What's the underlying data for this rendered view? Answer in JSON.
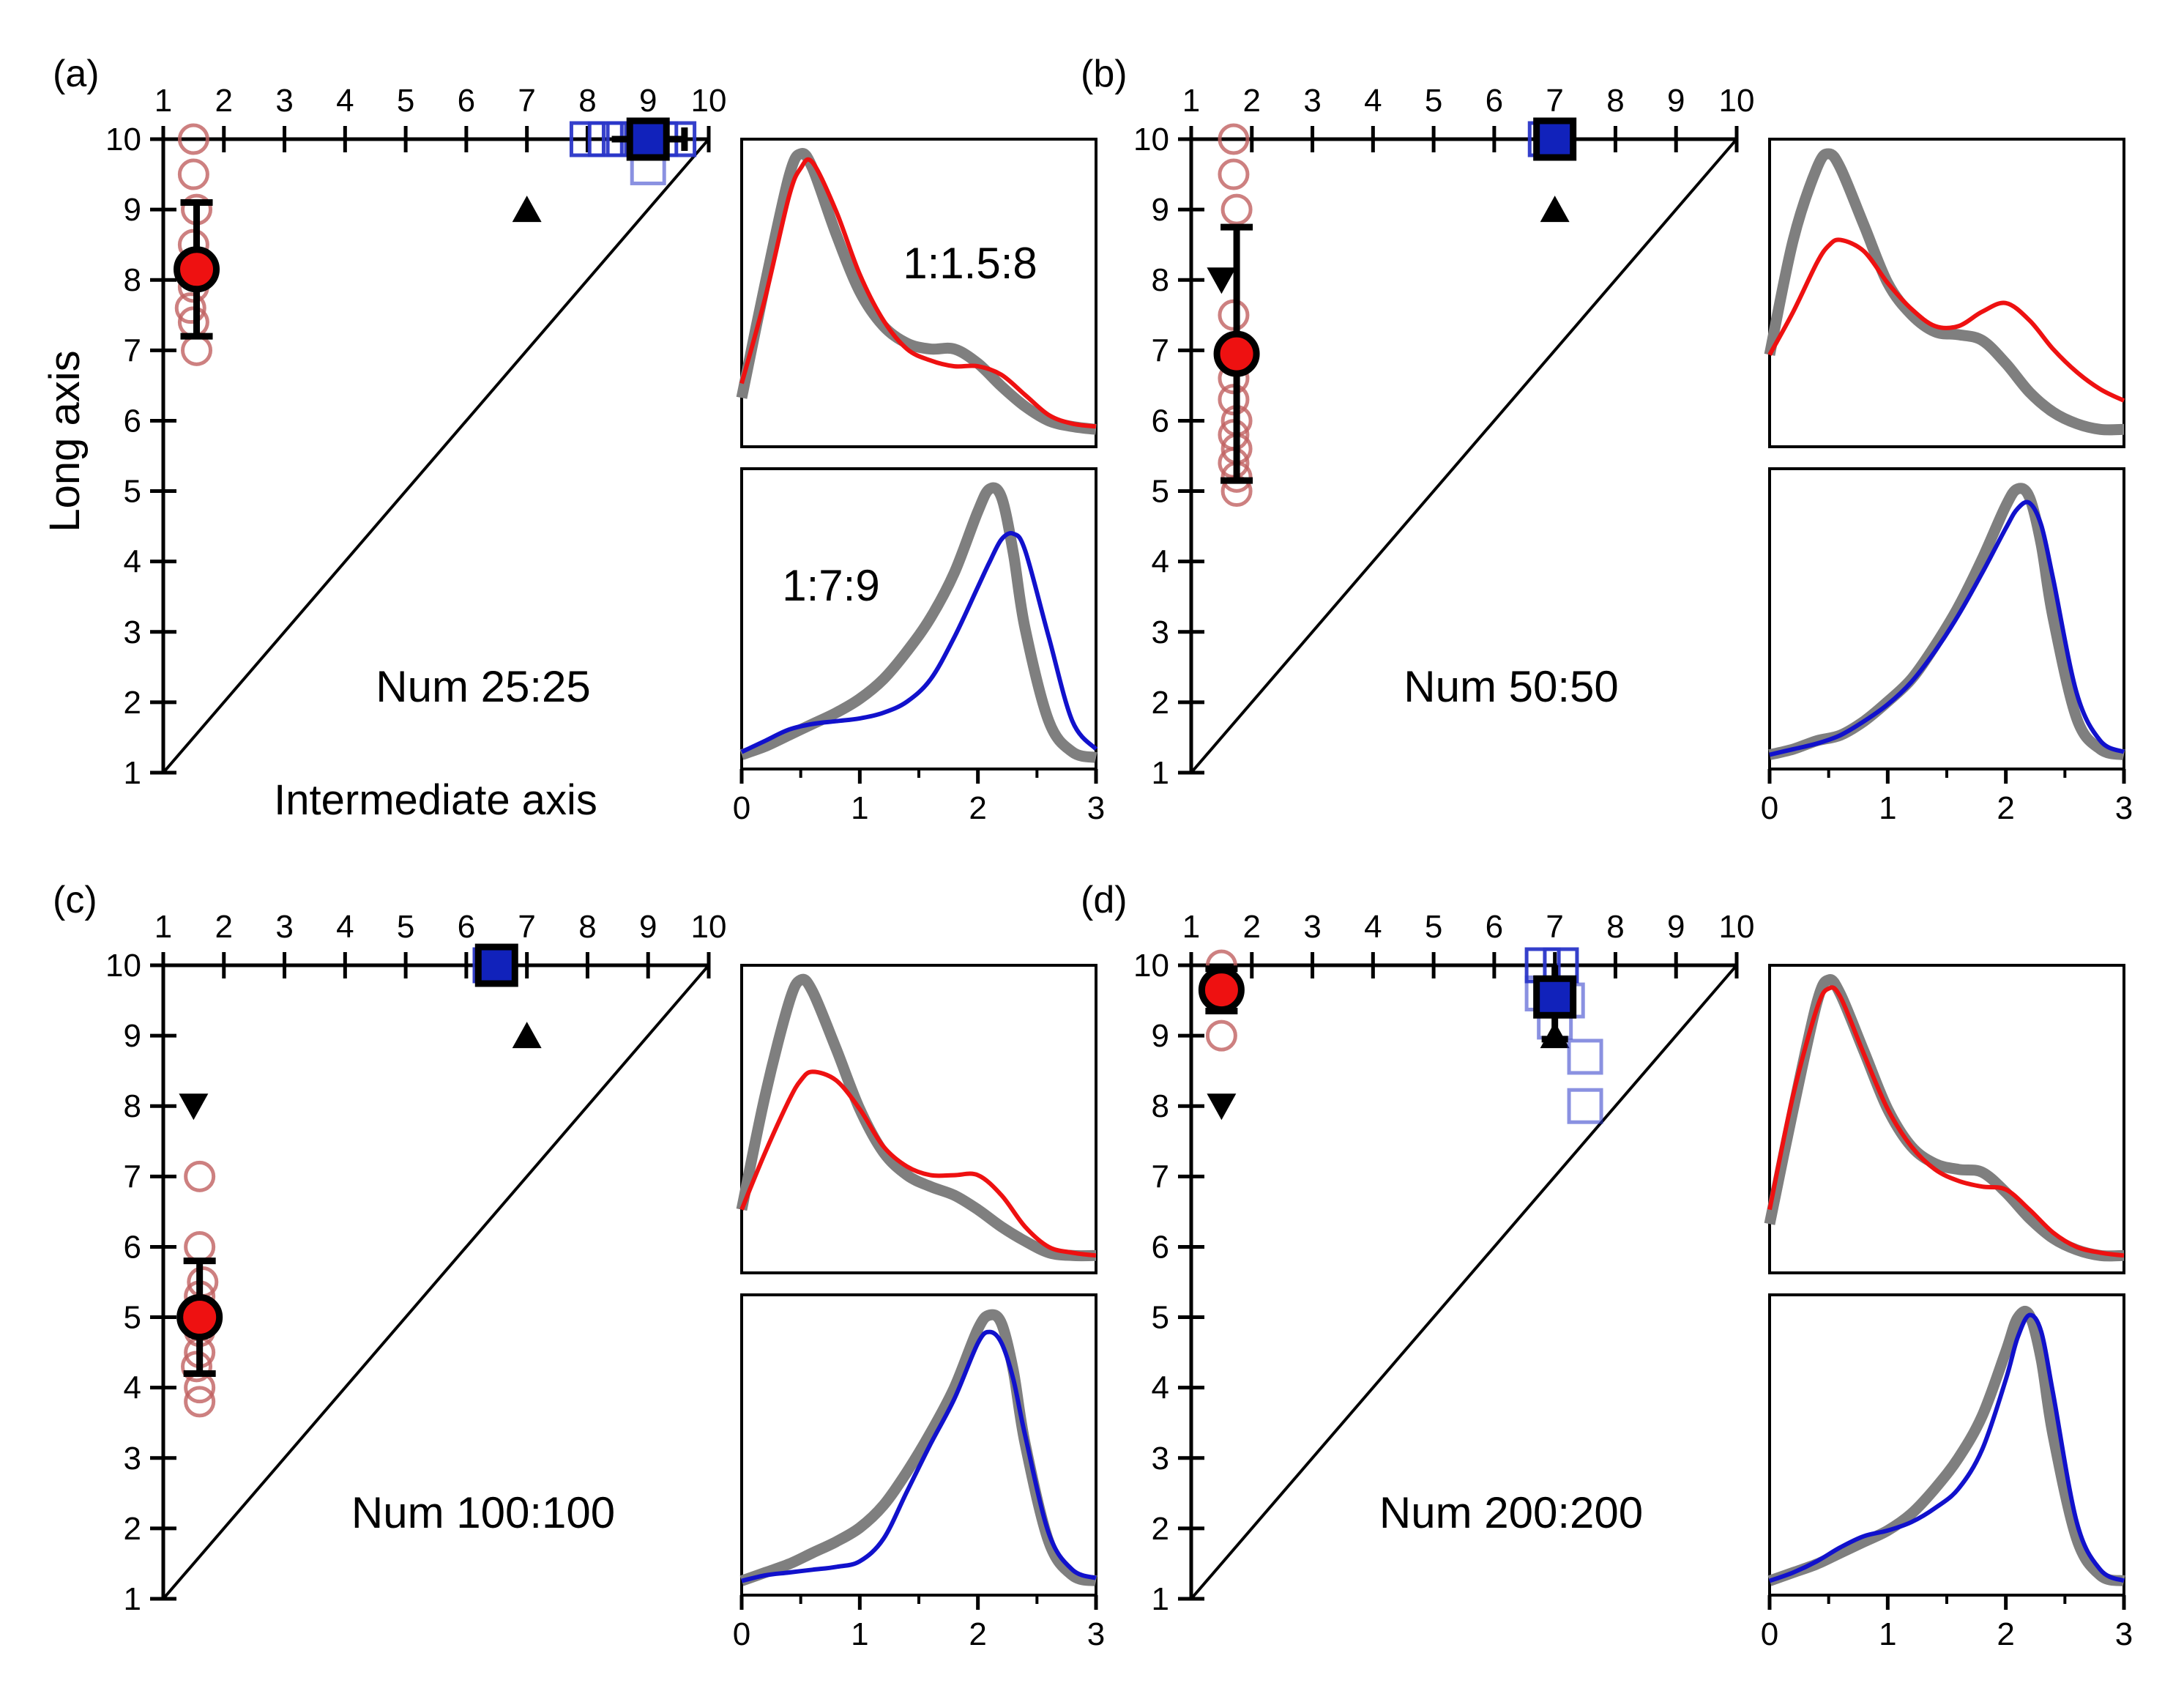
{
  "chart_data": [
    {
      "type": "scatter",
      "panel_label": "(a)",
      "caption": "Num 25:25",
      "ylabel": "Long axis",
      "xlabel": "Intermediate axis",
      "x_ticks": [
        "1",
        "2",
        "3",
        "4",
        "5",
        "6",
        "7",
        "8",
        "9",
        "10"
      ],
      "y_ticks": [
        "1",
        "2",
        "3",
        "4",
        "5",
        "6",
        "7",
        "8",
        "9",
        "10"
      ],
      "xlim": [
        1,
        10
      ],
      "ylim": [
        1,
        10
      ],
      "red_samples": [
        [
          1.5,
          10
        ],
        [
          1.5,
          9.5
        ],
        [
          1.55,
          9
        ],
        [
          1.5,
          8.5
        ],
        [
          1.55,
          8.2
        ],
        [
          1.5,
          7.9
        ],
        [
          1.45,
          7.6
        ],
        [
          1.5,
          7.4
        ],
        [
          1.55,
          7
        ]
      ],
      "red_mean": {
        "x": 1.55,
        "y": 8.15,
        "err": 0.95
      },
      "blue_samples": [
        [
          8.0,
          10
        ],
        [
          8.3,
          10
        ],
        [
          8.6,
          10
        ],
        [
          8.9,
          10
        ],
        [
          9.2,
          10
        ],
        [
          9.5,
          10
        ],
        [
          9.0,
          9.6
        ]
      ],
      "blue_mean": {
        "x": 9.0,
        "y": 10.0,
        "xerr": 0.6
      },
      "up_triangle": [
        7.0,
        9.0
      ],
      "down_triangle": null,
      "inset_top": {
        "label": "1:1.5:8",
        "xlim": [
          0,
          3
        ],
        "color": "#ee1111",
        "x": [
          0,
          0.2,
          0.4,
          0.5,
          0.6,
          0.8,
          1.0,
          1.2,
          1.4,
          1.6,
          1.8,
          2.0,
          2.2,
          2.4,
          2.6,
          2.8,
          3.0
        ],
        "reference": [
          0.15,
          0.55,
          0.92,
          1.0,
          0.95,
          0.72,
          0.52,
          0.4,
          0.34,
          0.32,
          0.32,
          0.27,
          0.19,
          0.12,
          0.07,
          0.05,
          0.04
        ],
        "fit": [
          0.2,
          0.5,
          0.85,
          0.95,
          0.97,
          0.8,
          0.58,
          0.42,
          0.32,
          0.28,
          0.26,
          0.26,
          0.23,
          0.16,
          0.09,
          0.06,
          0.05
        ]
      },
      "inset_bottom": {
        "label": "1:7:9",
        "xlim": [
          0,
          3
        ],
        "color": "#1111cc",
        "x": [
          0,
          0.2,
          0.4,
          0.6,
          0.8,
          1.0,
          1.2,
          1.4,
          1.6,
          1.8,
          2.0,
          2.1,
          2.2,
          2.3,
          2.4,
          2.6,
          2.8,
          3.0
        ],
        "reference": [
          0.03,
          0.06,
          0.1,
          0.14,
          0.18,
          0.23,
          0.3,
          0.4,
          0.52,
          0.68,
          0.9,
          0.98,
          0.95,
          0.75,
          0.48,
          0.15,
          0.04,
          0.02
        ],
        "fit": [
          0.04,
          0.08,
          0.12,
          0.14,
          0.15,
          0.16,
          0.18,
          0.22,
          0.3,
          0.45,
          0.63,
          0.72,
          0.8,
          0.82,
          0.76,
          0.45,
          0.15,
          0.05
        ]
      },
      "inset_xticks": [
        "0",
        "1",
        "2",
        "3"
      ]
    },
    {
      "type": "scatter",
      "panel_label": "(b)",
      "caption": "Num 50:50",
      "x_ticks": [
        "1",
        "2",
        "3",
        "4",
        "5",
        "6",
        "7",
        "8",
        "9",
        "10"
      ],
      "y_ticks": [
        "1",
        "2",
        "3",
        "4",
        "5",
        "6",
        "7",
        "8",
        "9",
        "10"
      ],
      "xlim": [
        1,
        10
      ],
      "ylim": [
        1,
        10
      ],
      "red_samples": [
        [
          1.7,
          10
        ],
        [
          1.7,
          9.5
        ],
        [
          1.75,
          9
        ],
        [
          1.7,
          7.5
        ],
        [
          1.75,
          7.0
        ],
        [
          1.7,
          6.6
        ],
        [
          1.7,
          6.3
        ],
        [
          1.75,
          6.0
        ],
        [
          1.7,
          5.8
        ],
        [
          1.75,
          5.6
        ],
        [
          1.7,
          5.4
        ],
        [
          1.75,
          5.2
        ],
        [
          1.75,
          5.0
        ]
      ],
      "red_mean": {
        "x": 1.75,
        "y": 6.95,
        "err": 1.8
      },
      "blue_samples": [
        [
          6.85,
          10
        ],
        [
          7.0,
          10
        ]
      ],
      "blue_mean": {
        "x": 7.0,
        "y": 10.0
      },
      "up_triangle": [
        7.0,
        9.0
      ],
      "down_triangle": [
        1.5,
        8.0
      ],
      "inset_top": {
        "label": "",
        "xlim": [
          0,
          3
        ],
        "color": "#ee1111",
        "x": [
          0,
          0.2,
          0.4,
          0.5,
          0.6,
          0.8,
          1.0,
          1.2,
          1.4,
          1.6,
          1.8,
          2.0,
          2.2,
          2.4,
          2.6,
          2.8,
          3.0
        ],
        "reference": [
          0.3,
          0.7,
          0.95,
          1.0,
          0.95,
          0.75,
          0.55,
          0.44,
          0.38,
          0.37,
          0.35,
          0.27,
          0.17,
          0.1,
          0.06,
          0.04,
          0.04
        ],
        "fit": [
          0.3,
          0.45,
          0.62,
          0.68,
          0.7,
          0.66,
          0.55,
          0.46,
          0.4,
          0.4,
          0.45,
          0.48,
          0.42,
          0.32,
          0.24,
          0.18,
          0.14
        ]
      },
      "inset_bottom": {
        "label": "",
        "xlim": [
          0,
          3
        ],
        "color": "#1111cc",
        "x": [
          0,
          0.2,
          0.4,
          0.6,
          0.8,
          1.0,
          1.2,
          1.4,
          1.6,
          1.8,
          2.0,
          2.1,
          2.2,
          2.3,
          2.4,
          2.6,
          2.8,
          3.0
        ],
        "reference": [
          0.03,
          0.05,
          0.08,
          0.1,
          0.15,
          0.22,
          0.3,
          0.42,
          0.56,
          0.73,
          0.92,
          0.98,
          0.95,
          0.78,
          0.52,
          0.16,
          0.05,
          0.03
        ],
        "fit": [
          0.03,
          0.05,
          0.07,
          0.1,
          0.15,
          0.21,
          0.29,
          0.4,
          0.53,
          0.68,
          0.84,
          0.91,
          0.93,
          0.85,
          0.66,
          0.25,
          0.08,
          0.04
        ]
      },
      "inset_xticks": [
        "0",
        "1",
        "2",
        "3"
      ]
    },
    {
      "type": "scatter",
      "panel_label": "(c)",
      "caption": "Num 100:100",
      "x_ticks": [
        "1",
        "2",
        "3",
        "4",
        "5",
        "6",
        "7",
        "8",
        "9",
        "10"
      ],
      "y_ticks": [
        "1",
        "2",
        "3",
        "4",
        "5",
        "6",
        "7",
        "8",
        "9",
        "10"
      ],
      "xlim": [
        1,
        10
      ],
      "ylim": [
        1,
        10
      ],
      "red_samples": [
        [
          1.6,
          7.0
        ],
        [
          1.6,
          6.0
        ],
        [
          1.65,
          5.5
        ],
        [
          1.6,
          5.3
        ],
        [
          1.65,
          5.1
        ],
        [
          1.6,
          4.8
        ],
        [
          1.6,
          4.5
        ],
        [
          1.55,
          4.3
        ],
        [
          1.6,
          4.0
        ],
        [
          1.6,
          3.8
        ]
      ],
      "red_mean": {
        "x": 1.6,
        "y": 5.0,
        "err": 0.8
      },
      "blue_samples": [
        [
          6.4,
          10
        ],
        [
          6.5,
          10
        ]
      ],
      "blue_mean": {
        "x": 6.5,
        "y": 10.0
      },
      "up_triangle": [
        7.0,
        9.0
      ],
      "down_triangle": [
        1.5,
        8.0
      ],
      "inset_top": {
        "label": "",
        "xlim": [
          0,
          3
        ],
        "color": "#ee1111",
        "x": [
          0,
          0.2,
          0.4,
          0.5,
          0.6,
          0.8,
          1.0,
          1.2,
          1.4,
          1.6,
          1.8,
          2.0,
          2.2,
          2.4,
          2.6,
          2.8,
          3.0
        ],
        "reference": [
          0.2,
          0.6,
          0.92,
          1.0,
          0.96,
          0.76,
          0.55,
          0.4,
          0.32,
          0.28,
          0.25,
          0.2,
          0.14,
          0.09,
          0.05,
          0.04,
          0.04
        ],
        "fit": [
          0.2,
          0.4,
          0.58,
          0.65,
          0.68,
          0.65,
          0.55,
          0.42,
          0.35,
          0.32,
          0.32,
          0.32,
          0.25,
          0.14,
          0.07,
          0.05,
          0.04
        ]
      },
      "inset_bottom": {
        "label": "",
        "xlim": [
          0,
          3
        ],
        "color": "#1111cc",
        "x": [
          0,
          0.2,
          0.4,
          0.6,
          0.8,
          1.0,
          1.2,
          1.4,
          1.6,
          1.8,
          2.0,
          2.1,
          2.2,
          2.3,
          2.4,
          2.6,
          2.8,
          3.0
        ],
        "reference": [
          0.03,
          0.06,
          0.09,
          0.13,
          0.17,
          0.22,
          0.3,
          0.42,
          0.56,
          0.72,
          0.93,
          0.98,
          0.95,
          0.78,
          0.52,
          0.17,
          0.05,
          0.03
        ],
        "fit": [
          0.03,
          0.05,
          0.06,
          0.07,
          0.08,
          0.1,
          0.18,
          0.35,
          0.52,
          0.68,
          0.88,
          0.92,
          0.88,
          0.75,
          0.55,
          0.2,
          0.07,
          0.04
        ]
      },
      "inset_xticks": [
        "0",
        "1",
        "2",
        "3"
      ]
    },
    {
      "type": "scatter",
      "panel_label": "(d)",
      "caption": "Num 200:200",
      "x_ticks": [
        "1",
        "2",
        "3",
        "4",
        "5",
        "6",
        "7",
        "8",
        "9",
        "10"
      ],
      "y_ticks": [
        "1",
        "2",
        "3",
        "4",
        "5",
        "6",
        "7",
        "8",
        "9",
        "10"
      ],
      "xlim": [
        1,
        10
      ],
      "ylim": [
        1,
        10
      ],
      "red_samples": [
        [
          1.5,
          10
        ],
        [
          1.5,
          9.6
        ],
        [
          1.5,
          9.0
        ]
      ],
      "red_mean": {
        "x": 1.5,
        "y": 9.65,
        "err": 0.3
      },
      "blue_samples": [
        [
          6.8,
          10
        ],
        [
          7.1,
          10
        ],
        [
          6.8,
          9.6
        ],
        [
          7.2,
          9.5
        ],
        [
          7.0,
          9.2
        ],
        [
          7.5,
          8.7
        ],
        [
          7.5,
          8.0
        ]
      ],
      "blue_mean": {
        "x": 7.0,
        "y": 9.55,
        "err": 0.6
      },
      "up_triangle": [
        7.0,
        9.0
      ],
      "down_triangle": [
        1.5,
        8.0
      ],
      "inset_top": {
        "label": "",
        "xlim": [
          0,
          3
        ],
        "color": "#ee1111",
        "x": [
          0,
          0.2,
          0.4,
          0.5,
          0.6,
          0.8,
          1.0,
          1.2,
          1.4,
          1.6,
          1.8,
          2.0,
          2.2,
          2.4,
          2.6,
          2.8,
          3.0
        ],
        "reference": [
          0.15,
          0.55,
          0.92,
          1.0,
          0.95,
          0.75,
          0.55,
          0.42,
          0.36,
          0.34,
          0.33,
          0.26,
          0.17,
          0.1,
          0.06,
          0.04,
          0.04
        ],
        "fit": [
          0.2,
          0.6,
          0.9,
          0.97,
          0.94,
          0.74,
          0.55,
          0.42,
          0.34,
          0.3,
          0.28,
          0.27,
          0.2,
          0.12,
          0.07,
          0.05,
          0.04
        ]
      },
      "inset_bottom": {
        "label": "",
        "xlim": [
          0,
          3
        ],
        "color": "#1111cc",
        "x": [
          0,
          0.2,
          0.4,
          0.6,
          0.8,
          1.0,
          1.2,
          1.4,
          1.6,
          1.8,
          2.0,
          2.1,
          2.2,
          2.3,
          2.4,
          2.6,
          2.8,
          3.0
        ],
        "reference": [
          0.03,
          0.06,
          0.09,
          0.13,
          0.17,
          0.21,
          0.27,
          0.36,
          0.47,
          0.62,
          0.85,
          0.97,
          0.98,
          0.82,
          0.55,
          0.18,
          0.05,
          0.03
        ],
        "fit": [
          0.03,
          0.06,
          0.1,
          0.15,
          0.19,
          0.21,
          0.24,
          0.29,
          0.36,
          0.5,
          0.75,
          0.9,
          0.98,
          0.92,
          0.7,
          0.24,
          0.07,
          0.03
        ]
      },
      "inset_xticks": [
        "0",
        "1",
        "2",
        "3"
      ]
    }
  ]
}
